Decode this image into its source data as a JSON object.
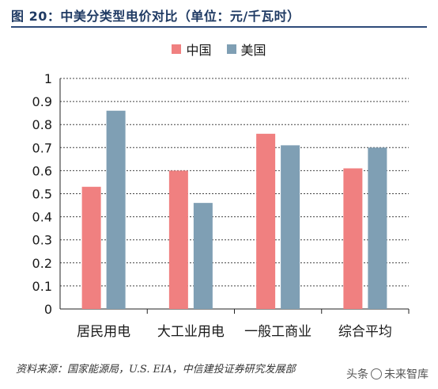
{
  "header": {
    "title": "图 20：中美分类型电价对比（单位：元/千瓦时）"
  },
  "footer": {
    "source": "资料来源：国家能源局，U.S. EIA，中信建投证券研究发展部",
    "watermark_prefix": "头条",
    "watermark_text": "未来智库"
  },
  "chart_data": {
    "type": "bar",
    "categories": [
      "居民用电",
      "大工业用电",
      "一般工商业",
      "综合平均"
    ],
    "series": [
      {
        "name": "中国",
        "color": "#f08080",
        "values": [
          0.53,
          0.6,
          0.76,
          0.61
        ]
      },
      {
        "name": "美国",
        "color": "#7f9fb4",
        "values": [
          0.86,
          0.46,
          0.71,
          0.7
        ]
      }
    ],
    "ylim": [
      0,
      1
    ],
    "yticks": [
      "0",
      "0.1",
      "0.2",
      "0.3",
      "0.4",
      "0.5",
      "0.6",
      "0.7",
      "0.8",
      "0.9",
      "1"
    ],
    "grid": true,
    "legend_position": "top-center"
  }
}
